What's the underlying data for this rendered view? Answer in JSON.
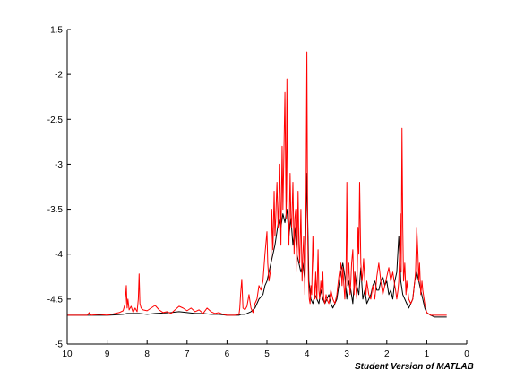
{
  "watermark": "Student Version of MATLAB",
  "chart_data": {
    "type": "line",
    "title": "",
    "xlabel": "",
    "ylabel": "",
    "xlim": [
      10,
      0
    ],
    "x_reversed": true,
    "ylim": [
      -5,
      -1.5
    ],
    "xticks": [
      10,
      9,
      8,
      7,
      6,
      5,
      4,
      3,
      2,
      1,
      0
    ],
    "yticks": [
      -1.5,
      -2,
      -2.5,
      -3,
      -3.5,
      -4,
      -4.5,
      -5
    ],
    "xtick_labels": [
      "10",
      "9",
      "8",
      "7",
      "6",
      "5",
      "4",
      "3",
      "2",
      "1",
      "0"
    ],
    "ytick_labels": [
      "-1.5",
      "-2",
      "-2.5",
      "-3",
      "-3.5",
      "-4",
      "-4.5",
      "-5"
    ],
    "grid": false,
    "series": [
      {
        "color": "#000000",
        "x": [
          10,
          9.5,
          9.0,
          8.6,
          8.5,
          8.4,
          8.2,
          8.0,
          7.8,
          7.4,
          7.2,
          7.0,
          6.8,
          6.6,
          6.4,
          6.2,
          6.0,
          5.7,
          5.65,
          5.6,
          5.55,
          5.5,
          5.4,
          5.3,
          5.2,
          5.1,
          5.05,
          5.0,
          4.95,
          4.9,
          4.85,
          4.8,
          4.75,
          4.7,
          4.65,
          4.6,
          4.55,
          4.5,
          4.45,
          4.4,
          4.35,
          4.3,
          4.25,
          4.2,
          4.15,
          4.1,
          4.05,
          4.0,
          3.98,
          3.95,
          3.9,
          3.85,
          3.8,
          3.75,
          3.7,
          3.65,
          3.6,
          3.55,
          3.5,
          3.45,
          3.4,
          3.35,
          3.3,
          3.25,
          3.2,
          3.15,
          3.1,
          3.05,
          3.0,
          2.95,
          2.9,
          2.85,
          2.8,
          2.75,
          2.7,
          2.65,
          2.6,
          2.55,
          2.5,
          2.45,
          2.4,
          2.35,
          2.3,
          2.25,
          2.2,
          2.15,
          2.1,
          2.05,
          2.0,
          1.95,
          1.9,
          1.85,
          1.8,
          1.75,
          1.7,
          1.65,
          1.6,
          1.55,
          1.5,
          1.45,
          1.4,
          1.35,
          1.3,
          1.25,
          1.2,
          1.15,
          1.1,
          1.05,
          1.0,
          0.9,
          0.8,
          0.7,
          0.6,
          0.5
        ],
        "y": [
          -4.68,
          -4.68,
          -4.68,
          -4.67,
          -4.66,
          -4.66,
          -4.66,
          -4.67,
          -4.66,
          -4.65,
          -4.64,
          -4.65,
          -4.66,
          -4.66,
          -4.67,
          -4.67,
          -4.68,
          -4.68,
          -4.67,
          -4.67,
          -4.67,
          -4.66,
          -4.64,
          -4.6,
          -4.5,
          -4.45,
          -4.35,
          -4.3,
          -4.2,
          -4.1,
          -4.0,
          -3.9,
          -3.75,
          -3.6,
          -3.7,
          -3.55,
          -3.65,
          -3.5,
          -3.8,
          -3.6,
          -3.9,
          -3.7,
          -4.0,
          -4.1,
          -4.2,
          -4.1,
          -4.3,
          -3.1,
          -3.6,
          -4.3,
          -4.5,
          -4.55,
          -4.45,
          -4.5,
          -4.55,
          -4.4,
          -4.5,
          -4.55,
          -4.5,
          -4.45,
          -4.55,
          -4.6,
          -4.55,
          -4.5,
          -4.35,
          -4.2,
          -4.1,
          -4.25,
          -4.5,
          -4.3,
          -4.4,
          -4.55,
          -4.2,
          -4.35,
          -4.45,
          -4.15,
          -4.5,
          -4.4,
          -4.55,
          -4.5,
          -4.45,
          -4.35,
          -4.3,
          -4.4,
          -4.4,
          -4.3,
          -4.25,
          -4.35,
          -4.3,
          -4.45,
          -4.4,
          -4.5,
          -4.3,
          -4.2,
          -3.8,
          -4.3,
          -4.45,
          -4.5,
          -4.55,
          -4.6,
          -4.55,
          -4.5,
          -4.3,
          -4.2,
          -4.3,
          -4.4,
          -4.5,
          -4.6,
          -4.65,
          -4.68,
          -4.7,
          -4.7,
          -4.7,
          -4.7
        ]
      },
      {
        "color": "#ff0000",
        "x": [
          10,
          9.5,
          9.45,
          9.4,
          9.2,
          9.0,
          8.9,
          8.8,
          8.7,
          8.6,
          8.55,
          8.52,
          8.5,
          8.48,
          8.45,
          8.4,
          8.35,
          8.3,
          8.25,
          8.22,
          8.2,
          8.18,
          8.15,
          8.1,
          8.0,
          7.9,
          7.8,
          7.7,
          7.6,
          7.5,
          7.4,
          7.3,
          7.2,
          7.1,
          7.0,
          6.9,
          6.8,
          6.7,
          6.6,
          6.5,
          6.4,
          6.3,
          6.2,
          6.1,
          6.0,
          5.9,
          5.8,
          5.7,
          5.68,
          5.66,
          5.63,
          5.6,
          5.55,
          5.5,
          5.45,
          5.4,
          5.35,
          5.3,
          5.25,
          5.2,
          5.15,
          5.1,
          5.05,
          5.0,
          4.98,
          4.95,
          4.9,
          4.88,
          4.85,
          4.82,
          4.8,
          4.78,
          4.75,
          4.72,
          4.7,
          4.68,
          4.65,
          4.62,
          4.6,
          4.58,
          4.55,
          4.52,
          4.5,
          4.48,
          4.45,
          4.42,
          4.4,
          4.38,
          4.35,
          4.32,
          4.3,
          4.28,
          4.25,
          4.22,
          4.2,
          4.18,
          4.15,
          4.12,
          4.1,
          4.08,
          4.05,
          4.02,
          4.0,
          3.98,
          3.96,
          3.94,
          3.92,
          3.9,
          3.88,
          3.85,
          3.82,
          3.8,
          3.78,
          3.75,
          3.72,
          3.7,
          3.68,
          3.65,
          3.62,
          3.6,
          3.58,
          3.55,
          3.52,
          3.5,
          3.45,
          3.4,
          3.35,
          3.3,
          3.25,
          3.2,
          3.15,
          3.12,
          3.1,
          3.08,
          3.05,
          3.02,
          3.0,
          2.98,
          2.95,
          2.92,
          2.9,
          2.88,
          2.85,
          2.82,
          2.8,
          2.78,
          2.75,
          2.72,
          2.7,
          2.68,
          2.65,
          2.62,
          2.6,
          2.58,
          2.55,
          2.52,
          2.5,
          2.45,
          2.4,
          2.35,
          2.3,
          2.25,
          2.2,
          2.15,
          2.1,
          2.05,
          2.0,
          1.95,
          1.9,
          1.85,
          1.8,
          1.78,
          1.75,
          1.72,
          1.7,
          1.68,
          1.66,
          1.64,
          1.62,
          1.6,
          1.58,
          1.55,
          1.52,
          1.5,
          1.45,
          1.4,
          1.35,
          1.3,
          1.28,
          1.25,
          1.22,
          1.2,
          1.18,
          1.15,
          1.12,
          1.1,
          1.05,
          1.0,
          0.9,
          0.8,
          0.7,
          0.6,
          0.5
        ],
        "y": [
          -4.68,
          -4.68,
          -4.65,
          -4.68,
          -4.67,
          -4.68,
          -4.67,
          -4.66,
          -4.65,
          -4.63,
          -4.55,
          -4.35,
          -4.6,
          -4.5,
          -4.62,
          -4.58,
          -4.65,
          -4.6,
          -4.64,
          -4.5,
          -4.22,
          -4.55,
          -4.6,
          -4.62,
          -4.63,
          -4.6,
          -4.57,
          -4.62,
          -4.65,
          -4.64,
          -4.66,
          -4.62,
          -4.58,
          -4.6,
          -4.63,
          -4.6,
          -4.64,
          -4.62,
          -4.66,
          -4.6,
          -4.64,
          -4.66,
          -4.65,
          -4.67,
          -4.68,
          -4.68,
          -4.68,
          -4.67,
          -4.6,
          -4.45,
          -4.28,
          -4.6,
          -4.62,
          -4.58,
          -4.45,
          -4.6,
          -4.65,
          -4.55,
          -4.5,
          -4.35,
          -4.4,
          -4.3,
          -4.0,
          -3.75,
          -4.1,
          -4.3,
          -4.15,
          -3.5,
          -3.95,
          -3.3,
          -3.8,
          -3.6,
          -3.2,
          -3.7,
          -3.4,
          -3.0,
          -3.9,
          -2.8,
          -3.5,
          -3.0,
          -2.2,
          -3.6,
          -2.05,
          -3.4,
          -3.9,
          -3.1,
          -3.6,
          -3.7,
          -3.2,
          -4.0,
          -3.6,
          -3.5,
          -4.2,
          -3.3,
          -3.9,
          -4.1,
          -3.5,
          -4.3,
          -4.0,
          -3.8,
          -4.45,
          -3.3,
          -1.75,
          -3.8,
          -4.3,
          -4.5,
          -4.55,
          -4.35,
          -4.45,
          -3.8,
          -4.3,
          -4.5,
          -4.2,
          -4.5,
          -3.95,
          -4.4,
          -4.5,
          -4.3,
          -4.45,
          -4.2,
          -4.5,
          -4.55,
          -4.45,
          -4.5,
          -4.55,
          -4.4,
          -4.5,
          -4.55,
          -4.45,
          -4.25,
          -4.1,
          -4.35,
          -4.15,
          -4.3,
          -4.5,
          -4.2,
          -3.2,
          -4.35,
          -4.1,
          -4.45,
          -4.3,
          -4.1,
          -3.95,
          -4.45,
          -4.2,
          -4.35,
          -4.5,
          -3.7,
          -4.0,
          -3.2,
          -4.1,
          -4.3,
          -4.2,
          -4.05,
          -4.3,
          -4.45,
          -4.3,
          -4.45,
          -4.5,
          -4.35,
          -4.5,
          -4.25,
          -4.1,
          -4.3,
          -4.45,
          -4.35,
          -4.25,
          -4.15,
          -4.3,
          -4.2,
          -4.35,
          -4.4,
          -4.5,
          -4.4,
          -4.3,
          -4.0,
          -3.55,
          -4.2,
          -2.6,
          -3.7,
          -4.3,
          -4.1,
          -4.45,
          -4.3,
          -4.5,
          -4.55,
          -4.5,
          -4.3,
          -4.2,
          -3.7,
          -4.0,
          -4.3,
          -4.1,
          -4.45,
          -4.3,
          -4.4,
          -4.55,
          -4.65,
          -4.68,
          -4.68,
          -4.68,
          -4.68,
          -4.68
        ]
      }
    ]
  }
}
